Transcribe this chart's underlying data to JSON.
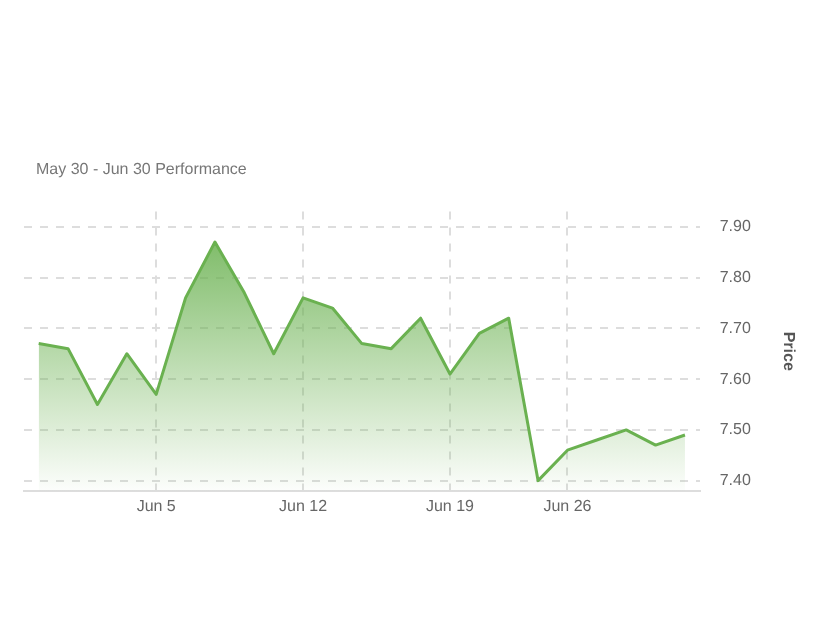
{
  "chart_data": {
    "type": "area",
    "subtitle": "May 30 - Jun 30 Performance",
    "ylabel": "Price",
    "categories": [
      null,
      null,
      null,
      null,
      "Jun 5",
      null,
      null,
      null,
      null,
      "Jun 12",
      null,
      null,
      null,
      null,
      "Jun 19",
      null,
      null,
      null,
      "Jun 26",
      null,
      null,
      null,
      null
    ],
    "series": [
      {
        "color": "#6ab150",
        "values": [
          7.67,
          7.66,
          7.55,
          7.65,
          7.57,
          7.76,
          7.87,
          7.77,
          7.65,
          7.76,
          7.74,
          7.67,
          7.66,
          7.72,
          7.61,
          7.69,
          7.72,
          7.4,
          7.46,
          7.48,
          7.5,
          7.47,
          7.49
        ]
      }
    ],
    "ylim": [
      7.38,
      7.93
    ],
    "yticks": [
      {
        "value": 7.4,
        "label": "7.40"
      },
      {
        "value": 7.5,
        "label": "7.50"
      },
      {
        "value": 7.6,
        "label": "7.60"
      },
      {
        "value": 7.7,
        "label": "7.70"
      },
      {
        "value": 7.8,
        "label": "7.80"
      },
      {
        "value": 7.9,
        "label": "7.90"
      }
    ],
    "grid": true
  }
}
